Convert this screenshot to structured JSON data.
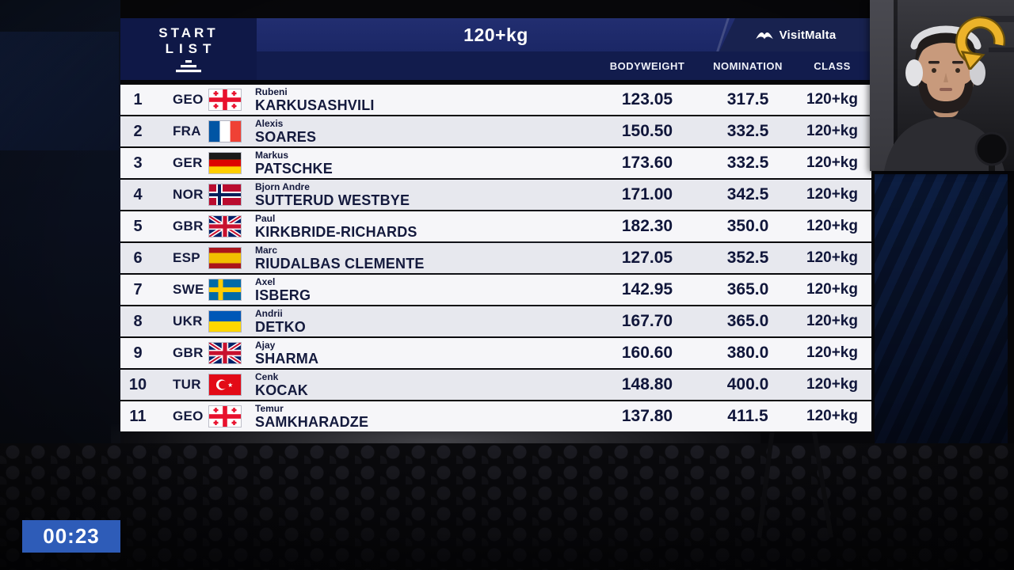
{
  "header": {
    "start_list_line1": "START",
    "start_list_line2": "LIST",
    "weight_class_title": "120+kg",
    "sponsor_visit": "Visit",
    "sponsor_malta": "Malta",
    "columns": [
      "BODYWEIGHT",
      "NOMINATION",
      "CLASS"
    ]
  },
  "rows": [
    {
      "rank": "1",
      "country": "GEO",
      "first_name": "Rubeni",
      "last_name": "KARKUSASHVILI",
      "bodyweight": "123.05",
      "nomination": "317.5",
      "weight_class": "120+kg"
    },
    {
      "rank": "2",
      "country": "FRA",
      "first_name": "Alexis",
      "last_name": "SOARES",
      "bodyweight": "150.50",
      "nomination": "332.5",
      "weight_class": "120+kg"
    },
    {
      "rank": "3",
      "country": "GER",
      "first_name": "Markus",
      "last_name": "PATSCHKE",
      "bodyweight": "173.60",
      "nomination": "332.5",
      "weight_class": "120+kg"
    },
    {
      "rank": "4",
      "country": "NOR",
      "first_name": "Bjorn Andre",
      "last_name": "SUTTERUD WESTBYE",
      "bodyweight": "171.00",
      "nomination": "342.5",
      "weight_class": "120+kg"
    },
    {
      "rank": "5",
      "country": "GBR",
      "first_name": "Paul",
      "last_name": "KIRKBRIDE-RICHARDS",
      "bodyweight": "182.30",
      "nomination": "350.0",
      "weight_class": "120+kg"
    },
    {
      "rank": "6",
      "country": "ESP",
      "first_name": "Marc",
      "last_name": "RIUDALBAS CLEMENTE",
      "bodyweight": "127.05",
      "nomination": "352.5",
      "weight_class": "120+kg"
    },
    {
      "rank": "7",
      "country": "SWE",
      "first_name": "Axel",
      "last_name": "ISBERG",
      "bodyweight": "142.95",
      "nomination": "365.0",
      "weight_class": "120+kg"
    },
    {
      "rank": "8",
      "country": "UKR",
      "first_name": "Andrii",
      "last_name": "DETKO",
      "bodyweight": "167.70",
      "nomination": "365.0",
      "weight_class": "120+kg"
    },
    {
      "rank": "9",
      "country": "GBR",
      "first_name": "Ajay",
      "last_name": "SHARMA",
      "bodyweight": "160.60",
      "nomination": "380.0",
      "weight_class": "120+kg"
    },
    {
      "rank": "10",
      "country": "TUR",
      "first_name": "Cenk",
      "last_name": "KOCAK",
      "bodyweight": "148.80",
      "nomination": "400.0",
      "weight_class": "120+kg"
    },
    {
      "rank": "11",
      "country": "GEO",
      "first_name": "Temur",
      "last_name": "SAMKHARADZE",
      "bodyweight": "137.80",
      "nomination": "411.5",
      "weight_class": "120+kg"
    }
  ],
  "timer": {
    "value": "00:23"
  },
  "icons": {
    "start_list_mark": "pyramid-bars",
    "visitmalta_bird": "bird-swoosh",
    "replay_arrow": "curved-yellow-arrow",
    "flags": [
      "GEO",
      "FRA",
      "GER",
      "NOR",
      "GBR",
      "ESP",
      "SWE",
      "UKR",
      "TUR"
    ]
  },
  "colors": {
    "header_navy": "#1b2766",
    "subheader_navy": "#121c4d",
    "row_light": "#f6f6f9",
    "row_alt": "#e7e8ee",
    "text_navy": "#141a3d",
    "timer_blue": "#2e5cb8",
    "accent_yellow": "#ecb32a"
  }
}
